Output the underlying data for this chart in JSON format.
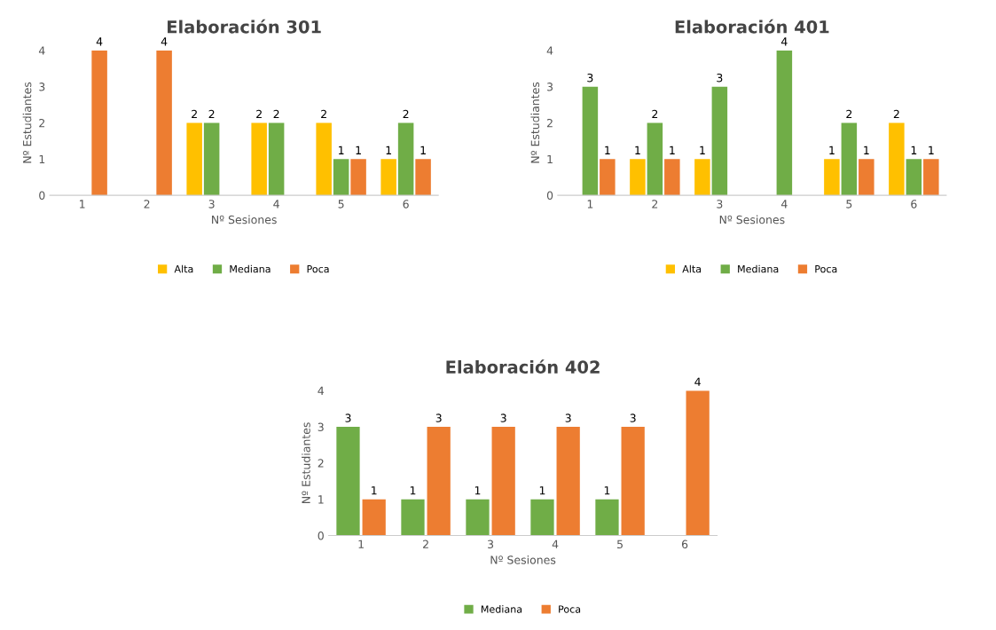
{
  "chart_data": [
    {
      "type": "bar",
      "title": "Elaboración 301",
      "xlabel": "Nº Sesiones",
      "ylabel": "Nº Estudiantes",
      "categories": [
        "1",
        "2",
        "3",
        "4",
        "5",
        "6"
      ],
      "ylim": [
        0,
        4
      ],
      "yticks": [
        0,
        1,
        2,
        3,
        4
      ],
      "grid": false,
      "legend": "bottom",
      "series": [
        {
          "name": "Alta",
          "color": "#ffc000",
          "values": [
            0,
            0,
            2,
            2,
            2,
            1
          ],
          "value_labels": [
            null,
            null,
            "2",
            "2",
            "2",
            "1"
          ]
        },
        {
          "name": "Mediana",
          "color": "#70ad47",
          "values": [
            0,
            0,
            2,
            2,
            1,
            2
          ],
          "value_labels": [
            null,
            null,
            "2",
            "2",
            "1",
            "2"
          ]
        },
        {
          "name": "Poca",
          "color": "#ed7d31",
          "values": [
            4,
            4,
            0,
            0,
            1,
            1
          ],
          "value_labels": [
            "4",
            "4",
            null,
            null,
            "1",
            "1"
          ]
        }
      ]
    },
    {
      "type": "bar",
      "title": "Elaboración 401",
      "xlabel": "Nº Sesiones",
      "ylabel": "Nº Estudiantes",
      "categories": [
        "1",
        "2",
        "3",
        "4",
        "5",
        "6"
      ],
      "ylim": [
        0,
        4
      ],
      "yticks": [
        0,
        1,
        2,
        3,
        4
      ],
      "grid": false,
      "legend": "bottom",
      "series": [
        {
          "name": "Alta",
          "color": "#ffc000",
          "values": [
            0,
            1,
            1,
            0,
            1,
            2
          ],
          "value_labels": [
            null,
            "1",
            "1",
            null,
            "1",
            "2"
          ]
        },
        {
          "name": "Mediana",
          "color": "#70ad47",
          "values": [
            3,
            2,
            3,
            4,
            2,
            1
          ],
          "value_labels": [
            "3",
            "2",
            "3",
            "4",
            "2",
            "1"
          ]
        },
        {
          "name": "Poca",
          "color": "#ed7d31",
          "values": [
            1,
            1,
            0,
            0,
            1,
            1
          ],
          "value_labels": [
            "1",
            "1",
            null,
            null,
            "1",
            "1"
          ]
        }
      ]
    },
    {
      "type": "bar",
      "title": "Elaboración 402",
      "xlabel": "Nº Sesiones",
      "ylabel": "Nº Estudiantes",
      "categories": [
        "1",
        "2",
        "3",
        "4",
        "5",
        "6"
      ],
      "ylim": [
        0,
        4
      ],
      "yticks": [
        0,
        1,
        2,
        3,
        4
      ],
      "grid": false,
      "legend": "bottom",
      "series": [
        {
          "name": "Mediana",
          "color": "#70ad47",
          "values": [
            3,
            1,
            1,
            1,
            1,
            0
          ],
          "value_labels": [
            "3",
            "1",
            "1",
            "1",
            "1",
            null
          ]
        },
        {
          "name": "Poca",
          "color": "#ed7d31",
          "values": [
            1,
            3,
            3,
            3,
            3,
            4
          ],
          "value_labels": [
            "1",
            "3",
            "3",
            "3",
            "3",
            "4"
          ]
        }
      ]
    }
  ]
}
